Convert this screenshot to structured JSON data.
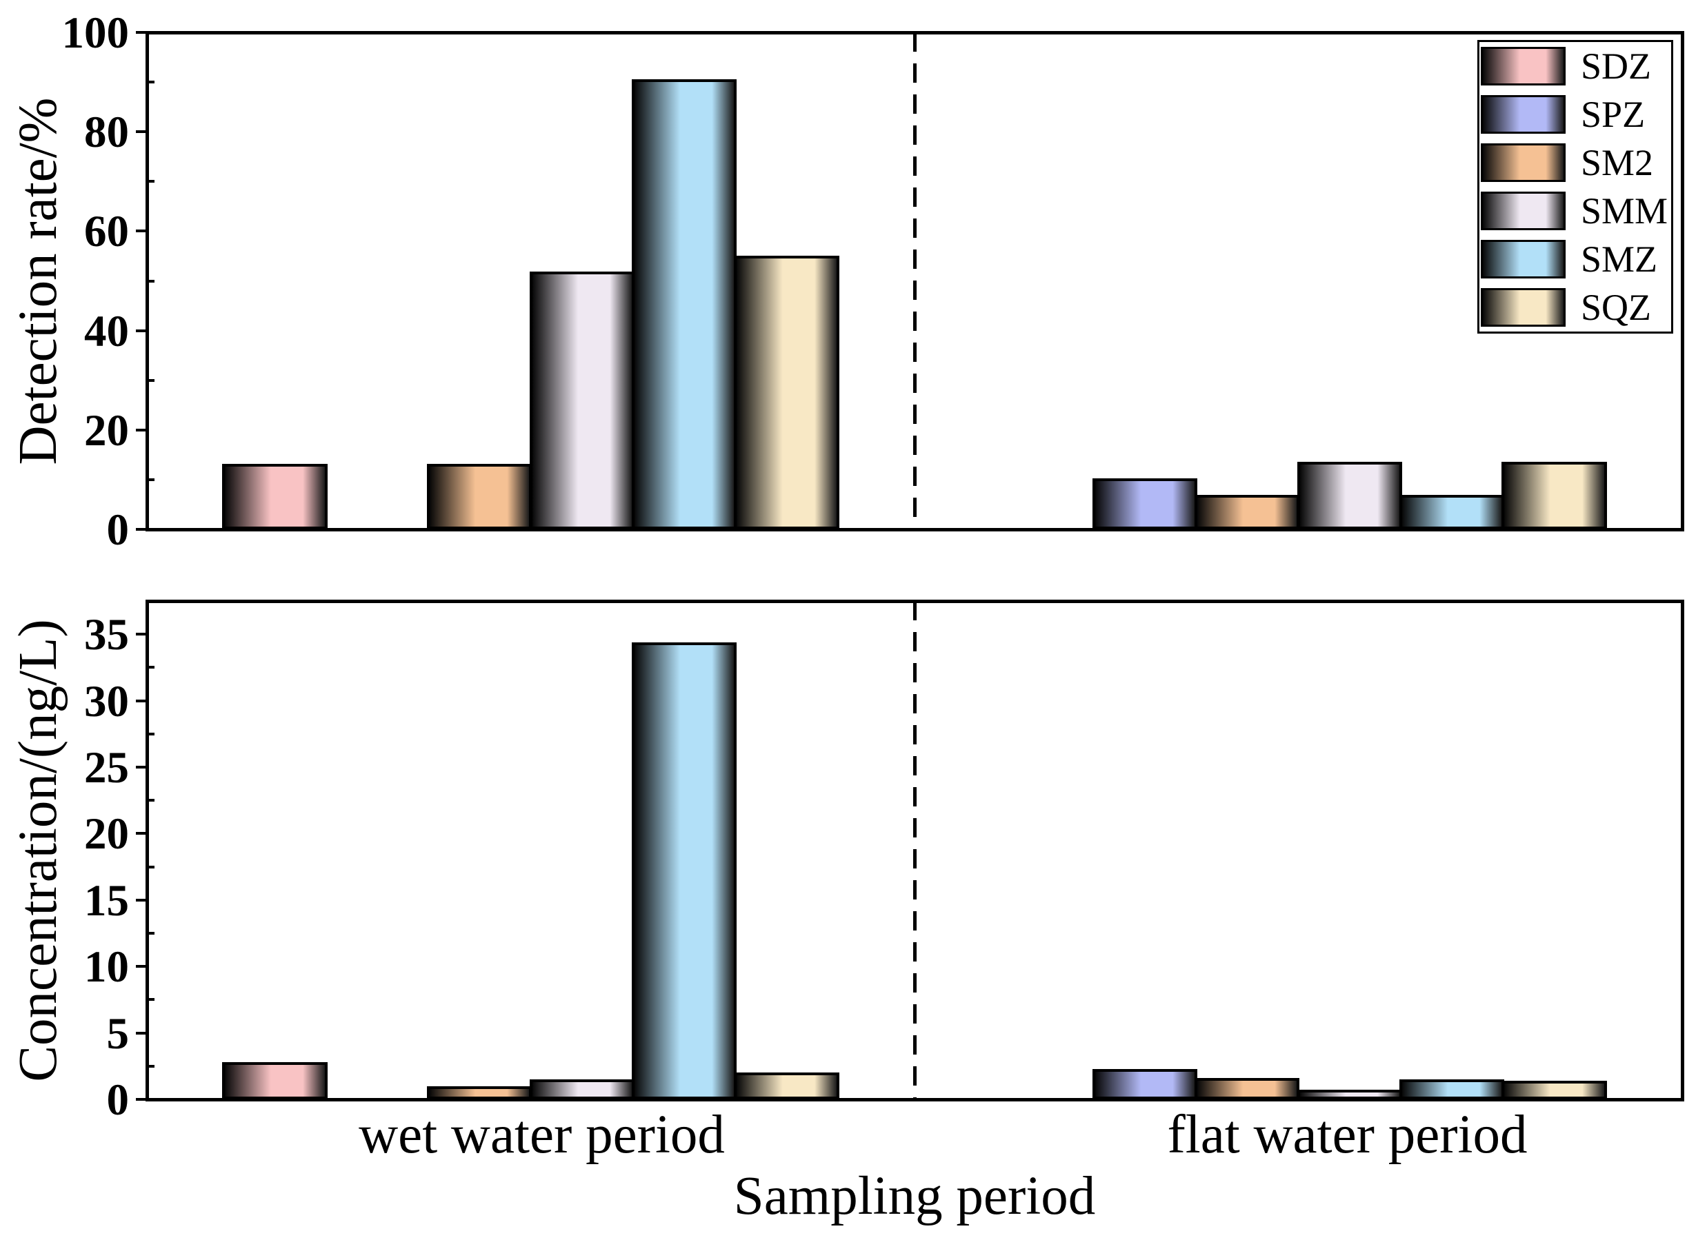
{
  "chart_data": {
    "type": "bar",
    "categories": [
      "wet water period",
      "flat water period"
    ],
    "xlabel": "Sampling period",
    "xlim": [
      0.5,
      2.5
    ],
    "grid": false,
    "legend_position": "top-right",
    "series": [
      {
        "name": "SDZ",
        "color": "#F9C3C4"
      },
      {
        "name": "SPZ",
        "color": "#B2B9F6"
      },
      {
        "name": "SM2",
        "color": "#F5C194"
      },
      {
        "name": "SMM",
        "color": "#EFE8F2"
      },
      {
        "name": "SMZ",
        "color": "#B2E0F8"
      },
      {
        "name": "SQZ",
        "color": "#F8E8C5"
      }
    ],
    "panels": [
      {
        "ylabel": "Detection rate/%",
        "ylim": [
          0,
          100
        ],
        "yticks": [
          0,
          20,
          40,
          60,
          80,
          100
        ],
        "values": {
          "SDZ": [
            12.9,
            0
          ],
          "SPZ": [
            0,
            10.0
          ],
          "SM2": [
            12.9,
            6.7
          ],
          "SMM": [
            51.6,
            13.3
          ],
          "SMZ": [
            90.3,
            6.7
          ],
          "SQZ": [
            54.8,
            13.3
          ]
        }
      },
      {
        "ylabel": "Concentration/(ng/L)",
        "ylim": [
          0,
          37.5
        ],
        "yticks": [
          0,
          5,
          10,
          15,
          20,
          25,
          30,
          35
        ],
        "values": {
          "SDZ": [
            2.7,
            0
          ],
          "SPZ": [
            0,
            2.2
          ],
          "SM2": [
            0.9,
            1.5
          ],
          "SMM": [
            1.4,
            0.6
          ],
          "SMZ": [
            34.3,
            1.4
          ],
          "SQZ": [
            1.9,
            1.3
          ]
        }
      }
    ]
  }
}
